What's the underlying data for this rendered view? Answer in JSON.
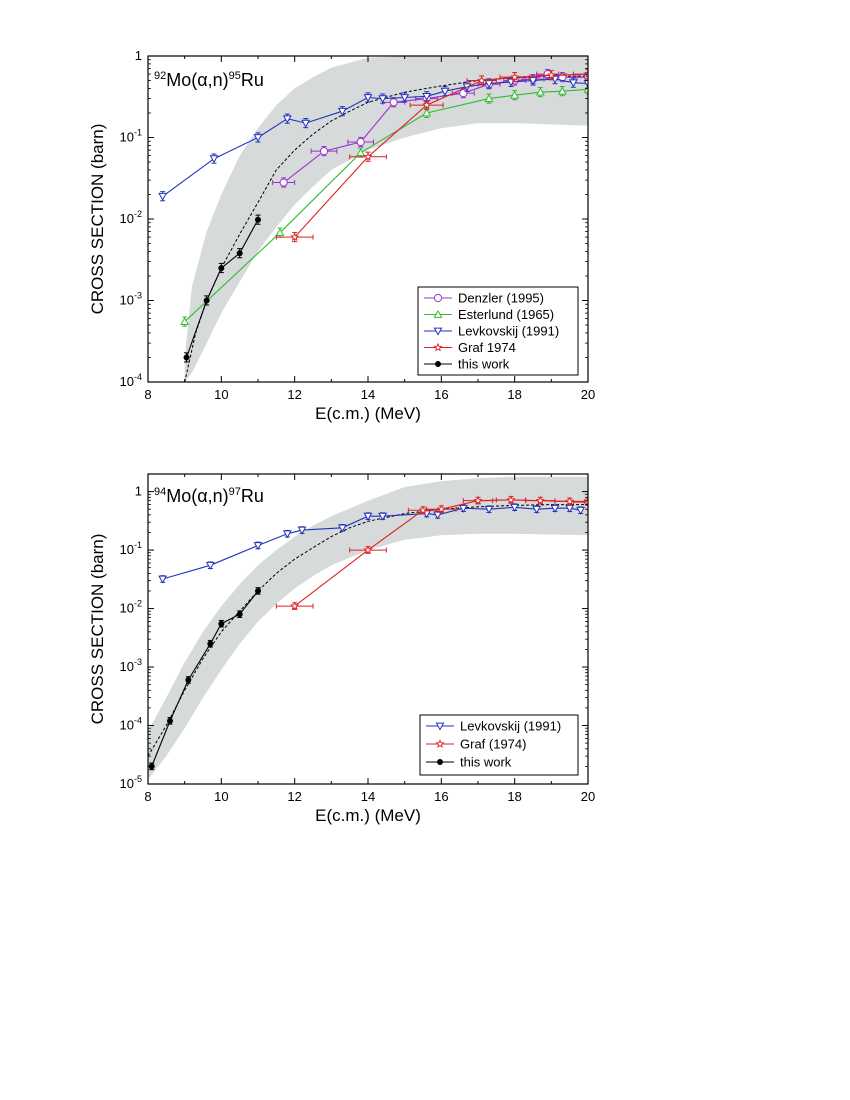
{
  "chart_data": [
    {
      "type": "scatter",
      "title_parts": {
        "pre_sup": "92",
        "base": "Mo(α,n)",
        "post_sup": "95",
        "tail": "Ru"
      },
      "xlabel": "E(c.m.) (MeV)",
      "ylabel": "CROSS SECTION (barn)",
      "xlim": [
        8,
        20
      ],
      "ylim": [
        0.0001,
        1
      ],
      "yscale": "log",
      "xticks": [
        8,
        10,
        12,
        14,
        16,
        18,
        20
      ],
      "xtick_labels": [
        "8",
        "10",
        "12",
        "14",
        "16",
        "18",
        "20"
      ],
      "yticks": [
        0.0001,
        0.001,
        0.01,
        0.1,
        1
      ],
      "ytick_labels": [
        {
          "base": "10",
          "exp": "-4"
        },
        {
          "base": "10",
          "exp": "-3"
        },
        {
          "base": "10",
          "exp": "-2"
        },
        {
          "base": "10",
          "exp": "-1"
        },
        {
          "base": "1",
          "exp": ""
        }
      ],
      "legend_position": "bottom-right",
      "band": {
        "upper": [
          [
            9.0,
            0.0002
          ],
          [
            9.2,
            0.0015
          ],
          [
            9.6,
            0.007
          ],
          [
            10.0,
            0.02
          ],
          [
            10.5,
            0.06
          ],
          [
            11.0,
            0.13
          ],
          [
            11.5,
            0.25
          ],
          [
            12.0,
            0.4
          ],
          [
            12.5,
            0.55
          ],
          [
            13.0,
            0.72
          ],
          [
            14.0,
            0.95
          ],
          [
            15.0,
            1.0
          ],
          [
            20.0,
            1.0
          ]
        ],
        "lower": [
          [
            9.0,
            0.0001
          ],
          [
            9.2,
            0.00013
          ],
          [
            9.6,
            0.0003
          ],
          [
            10.0,
            0.0007
          ],
          [
            10.5,
            0.0017
          ],
          [
            11.0,
            0.004
          ],
          [
            11.5,
            0.008
          ],
          [
            12.0,
            0.015
          ],
          [
            12.5,
            0.025
          ],
          [
            13.0,
            0.04
          ],
          [
            14.0,
            0.07
          ],
          [
            15.0,
            0.1
          ],
          [
            16.0,
            0.13
          ],
          [
            17.0,
            0.15
          ],
          [
            18.0,
            0.15
          ],
          [
            20.0,
            0.14
          ]
        ]
      },
      "theory": [
        [
          9.0,
          0.0001
        ],
        [
          9.3,
          0.0004
        ],
        [
          9.6,
          0.001
        ],
        [
          10.0,
          0.0025
        ],
        [
          10.5,
          0.0065
        ],
        [
          11.0,
          0.016
        ],
        [
          11.5,
          0.04
        ],
        [
          12.0,
          0.07
        ],
        [
          12.5,
          0.11
        ],
        [
          13.0,
          0.16
        ],
        [
          13.5,
          0.21
        ],
        [
          14.0,
          0.27
        ],
        [
          15.0,
          0.36
        ],
        [
          16.0,
          0.43
        ],
        [
          17.0,
          0.5
        ],
        [
          18.0,
          0.54
        ],
        [
          19.0,
          0.56
        ],
        [
          20.0,
          0.57
        ]
      ],
      "series": [
        {
          "name": "Denzler (1995)",
          "color": "#9933cc",
          "marker": "circle",
          "points": [
            [
              11.7,
              0.028
            ],
            [
              12.8,
              0.068
            ],
            [
              13.8,
              0.088
            ],
            [
              14.7,
              0.27
            ],
            [
              15.6,
              0.3
            ],
            [
              16.6,
              0.35
            ],
            [
              17.3,
              0.45
            ],
            [
              18.0,
              0.5
            ],
            [
              18.5,
              0.52
            ],
            [
              18.9,
              0.6
            ],
            [
              19.3,
              0.55
            ],
            [
              20.0,
              0.55
            ]
          ],
          "xerr": [
            0.3,
            0.35,
            0.35,
            0.3,
            0.3,
            0.3,
            0.3,
            0.3,
            0.3,
            0.3,
            0.3,
            0.3
          ]
        },
        {
          "name": "Esterlund (1965)",
          "color": "#33bb33",
          "marker": "triangle-up",
          "points": [
            [
              9.0,
              0.00055
            ],
            [
              11.6,
              0.0068
            ],
            [
              13.8,
              0.065
            ],
            [
              15.6,
              0.2
            ],
            [
              17.3,
              0.3
            ],
            [
              18.0,
              0.33
            ],
            [
              18.7,
              0.36
            ],
            [
              19.3,
              0.37
            ],
            [
              20.0,
              0.39
            ]
          ],
          "xerr": [
            0,
            0,
            0,
            0,
            0,
            0,
            0,
            0,
            0
          ]
        },
        {
          "name": "Levkovskij (1991)",
          "color": "#2233bb",
          "marker": "triangle-down",
          "points": [
            [
              8.4,
              0.019
            ],
            [
              9.8,
              0.055
            ],
            [
              11.0,
              0.1
            ],
            [
              11.8,
              0.17
            ],
            [
              12.3,
              0.15
            ],
            [
              13.3,
              0.21
            ],
            [
              14.0,
              0.31
            ],
            [
              14.4,
              0.3
            ],
            [
              15.0,
              0.31
            ],
            [
              15.6,
              0.32
            ],
            [
              16.1,
              0.37
            ],
            [
              16.7,
              0.42
            ],
            [
              17.3,
              0.46
            ],
            [
              17.9,
              0.48
            ],
            [
              18.5,
              0.5
            ],
            [
              19.1,
              0.52
            ],
            [
              19.6,
              0.47
            ],
            [
              20.0,
              0.46
            ]
          ],
          "xerr": [
            0,
            0,
            0,
            0,
            0,
            0,
            0,
            0,
            0,
            0,
            0,
            0,
            0,
            0,
            0,
            0,
            0,
            0
          ]
        },
        {
          "name": "Graf 1974",
          "color": "#dd2222",
          "marker": "star",
          "points": [
            [
              12.0,
              0.006
            ],
            [
              14.0,
              0.058
            ],
            [
              15.6,
              0.25
            ],
            [
              17.1,
              0.5
            ],
            [
              18.0,
              0.55
            ],
            [
              19.0,
              0.58
            ],
            [
              20.0,
              0.6
            ]
          ],
          "xerr": [
            0.5,
            0.5,
            0.45,
            0.4,
            0.4,
            0.4,
            0.4
          ]
        },
        {
          "name": "this work",
          "color": "#000000",
          "marker": "dot",
          "points": [
            [
              9.05,
              0.0002
            ],
            [
              9.6,
              0.001
            ],
            [
              10.0,
              0.0025
            ],
            [
              10.5,
              0.0038
            ],
            [
              11.0,
              0.0098
            ]
          ],
          "xerr": [
            0,
            0,
            0,
            0,
            0
          ]
        }
      ]
    },
    {
      "type": "scatter",
      "title_parts": {
        "pre_sup": "94",
        "base": "Mo(α,n)",
        "post_sup": "97",
        "tail": "Ru"
      },
      "xlabel": "E(c.m.) (MeV)",
      "ylabel": "CROSS SECTION (barn)",
      "xlim": [
        8,
        20
      ],
      "ylim": [
        1e-05,
        2
      ],
      "yscale": "log",
      "xticks": [
        8,
        10,
        12,
        14,
        16,
        18,
        20
      ],
      "xtick_labels": [
        "8",
        "10",
        "12",
        "14",
        "16",
        "18",
        "20"
      ],
      "yticks": [
        1e-05,
        0.0001,
        0.001,
        0.01,
        0.1,
        1
      ],
      "ytick_labels": [
        {
          "base": "10",
          "exp": "-5"
        },
        {
          "base": "10",
          "exp": "-4"
        },
        {
          "base": "10",
          "exp": "-3"
        },
        {
          "base": "10",
          "exp": "-2"
        },
        {
          "base": "10",
          "exp": "-1"
        },
        {
          "base": "1",
          "exp": ""
        }
      ],
      "legend_position": "bottom-right",
      "band": {
        "upper": [
          [
            8.0,
            8e-05
          ],
          [
            8.5,
            0.0003
          ],
          [
            9.0,
            0.0012
          ],
          [
            9.5,
            0.004
          ],
          [
            10.0,
            0.011
          ],
          [
            10.5,
            0.026
          ],
          [
            11.0,
            0.055
          ],
          [
            11.5,
            0.1
          ],
          [
            12.0,
            0.17
          ],
          [
            12.5,
            0.26
          ],
          [
            13.0,
            0.38
          ],
          [
            14.0,
            0.7
          ],
          [
            15.0,
            1.2
          ],
          [
            16.0,
            1.5
          ],
          [
            17.0,
            1.7
          ],
          [
            18.0,
            1.8
          ],
          [
            20.0,
            1.8
          ]
        ],
        "lower": [
          [
            8.0,
            1.2e-05
          ],
          [
            8.5,
            3e-05
          ],
          [
            9.0,
            9e-05
          ],
          [
            9.5,
            0.0003
          ],
          [
            10.0,
            0.0009
          ],
          [
            10.5,
            0.0025
          ],
          [
            11.0,
            0.006
          ],
          [
            11.5,
            0.012
          ],
          [
            12.0,
            0.022
          ],
          [
            12.5,
            0.036
          ],
          [
            13.0,
            0.055
          ],
          [
            14.0,
            0.1
          ],
          [
            15.0,
            0.15
          ],
          [
            16.0,
            0.18
          ],
          [
            17.0,
            0.19
          ],
          [
            18.0,
            0.19
          ],
          [
            20.0,
            0.18
          ]
        ]
      },
      "theory": [
        [
          8.0,
          3e-05
        ],
        [
          8.5,
          0.0001
        ],
        [
          9.0,
          0.0004
        ],
        [
          9.5,
          0.0014
        ],
        [
          10.0,
          0.004
        ],
        [
          10.5,
          0.009
        ],
        [
          11.0,
          0.02
        ],
        [
          11.5,
          0.04
        ],
        [
          12.0,
          0.07
        ],
        [
          12.5,
          0.11
        ],
        [
          13.0,
          0.17
        ],
        [
          13.5,
          0.24
        ],
        [
          14.0,
          0.31
        ],
        [
          15.0,
          0.42
        ],
        [
          16.0,
          0.5
        ],
        [
          17.0,
          0.55
        ],
        [
          18.0,
          0.58
        ],
        [
          19.0,
          0.6
        ],
        [
          20.0,
          0.6
        ]
      ],
      "series": [
        {
          "name": "Levkovskij (1991)",
          "color": "#2233bb",
          "marker": "triangle-down",
          "points": [
            [
              8.4,
              0.032
            ],
            [
              9.7,
              0.055
            ],
            [
              11.0,
              0.12
            ],
            [
              11.8,
              0.19
            ],
            [
              12.2,
              0.22
            ],
            [
              13.3,
              0.24
            ],
            [
              14.0,
              0.38
            ],
            [
              14.4,
              0.38
            ],
            [
              15.6,
              0.42
            ],
            [
              15.9,
              0.4
            ],
            [
              16.6,
              0.52
            ],
            [
              17.3,
              0.5
            ],
            [
              18.0,
              0.54
            ],
            [
              18.6,
              0.5
            ],
            [
              19.1,
              0.52
            ],
            [
              19.5,
              0.52
            ],
            [
              19.8,
              0.48
            ]
          ],
          "xerr": [
            0,
            0,
            0,
            0,
            0,
            0,
            0,
            0,
            0,
            0,
            0,
            0,
            0,
            0,
            0,
            0,
            0
          ]
        },
        {
          "name": "Graf (1974)",
          "color": "#dd2222",
          "marker": "star",
          "points": [
            [
              12.0,
              0.011
            ],
            [
              14.0,
              0.1
            ],
            [
              15.5,
              0.48
            ],
            [
              16.0,
              0.5
            ],
            [
              17.0,
              0.7
            ],
            [
              17.9,
              0.72
            ],
            [
              18.7,
              0.7
            ],
            [
              19.5,
              0.68
            ],
            [
              20.0,
              0.66
            ]
          ],
          "xerr": [
            0.5,
            0.5,
            0.4,
            0.4,
            0.4,
            0.4,
            0.4,
            0.4,
            0.4
          ]
        },
        {
          "name": "this work",
          "color": "#000000",
          "marker": "dot",
          "points": [
            [
              8.1,
              2e-05
            ],
            [
              8.6,
              0.00012
            ],
            [
              9.1,
              0.0006
            ],
            [
              9.7,
              0.0025
            ],
            [
              10.0,
              0.0055
            ],
            [
              10.5,
              0.008
            ],
            [
              11.0,
              0.02
            ]
          ],
          "xerr": [
            0,
            0,
            0,
            0,
            0,
            0,
            0
          ]
        }
      ]
    }
  ]
}
